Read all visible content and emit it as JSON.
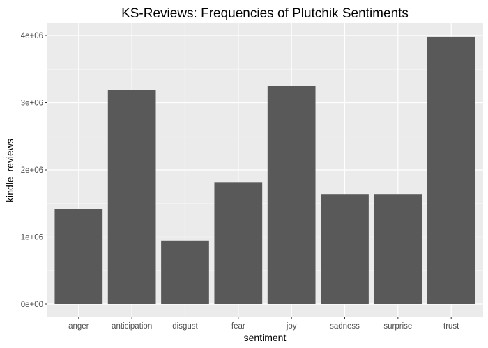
{
  "chart_data": {
    "type": "bar",
    "title": "KS-Reviews: Frequencies of Plutchik Sentiments",
    "xlabel": "sentiment",
    "ylabel": "kindle_reviews",
    "categories": [
      "anger",
      "anticipation",
      "disgust",
      "fear",
      "joy",
      "sadness",
      "surprise",
      "trust"
    ],
    "values": [
      1410000,
      3190000,
      945000,
      1810000,
      3250000,
      1635000,
      1635000,
      3980000
    ],
    "ylim": [
      0,
      4200000
    ],
    "y_ticks": [
      0,
      1000000,
      2000000,
      3000000,
      4000000
    ],
    "y_tick_labels": [
      "0e+00",
      "1e+06",
      "2e+06",
      "3e+06",
      "4e+06"
    ],
    "grid": true,
    "legend": "none",
    "colors": {
      "bar": "#595959",
      "panel_background": "#ebebeb",
      "grid_major": "#ffffff",
      "grid_minor": "#f5f5f5"
    }
  }
}
